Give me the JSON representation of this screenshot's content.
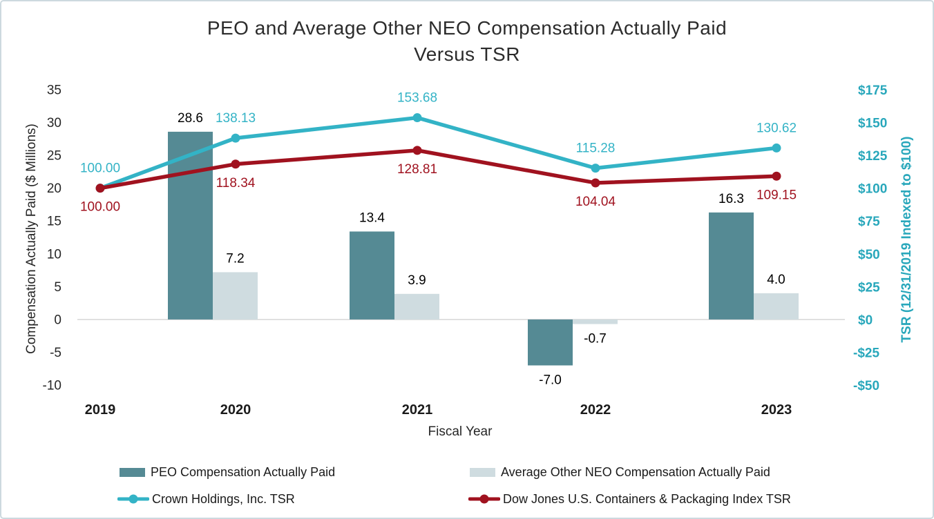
{
  "title": {
    "line1": "PEO and Average Other NEO Compensation Actually Paid",
    "line2": "Versus TSR"
  },
  "chart_data": {
    "type": "combo-bar-line",
    "categories": [
      "2019",
      "2020",
      "2021",
      "2022",
      "2023"
    ],
    "bar_series": [
      {
        "name": "PEO Compensation Actually Paid",
        "color": "#558A94",
        "axis": "left",
        "values": [
          null,
          28.6,
          13.4,
          -7.0,
          16.3
        ]
      },
      {
        "name": "Average Other NEO Compensation Actually Paid",
        "color": "#CFDCE0",
        "axis": "left",
        "values": [
          null,
          7.2,
          3.9,
          -0.7,
          4.0
        ]
      }
    ],
    "line_series": [
      {
        "name": "Crown Holdings, Inc. TSR",
        "color": "#33B3C6",
        "axis": "right",
        "values": [
          100.0,
          138.13,
          153.68,
          115.28,
          130.62
        ]
      },
      {
        "name": "Dow Jones U.S. Containers & Packaging Index TSR",
        "color": "#A0121F",
        "axis": "right",
        "values": [
          100.0,
          118.34,
          128.81,
          104.04,
          109.15
        ]
      }
    ],
    "left_axis": {
      "title": "Compensation Actually Paid ($ Millions)",
      "min": -10,
      "max": 35,
      "step": 5,
      "tick_labels": [
        "35",
        "30",
        "25",
        "20",
        "15",
        "10",
        "5",
        "0",
        "-5",
        "-10"
      ],
      "color": "#262626"
    },
    "right_axis": {
      "title": "TSR (12/31/2019 Indexed to $100)",
      "min": -50,
      "max": 175,
      "step": 25,
      "tick_labels": [
        "$175",
        "$150",
        "$125",
        "$100",
        "$75",
        "$50",
        "$25",
        "$0",
        "-$25",
        "-$50"
      ],
      "color": "#28A7BB"
    },
    "x_axis": {
      "title": "Fiscal Year",
      "label_color": "#1A1A1A"
    },
    "bar_label_color": "#000000",
    "gridline": "zero-line-only",
    "legend_position": "bottom"
  }
}
